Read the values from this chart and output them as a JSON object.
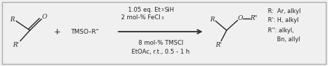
{
  "background_color": "#f0f0f0",
  "fig_width": 4.74,
  "fig_height": 0.96,
  "dpi": 100,
  "text_color": "#222222",
  "arrow_color": "#333333",
  "above_arrow_1": "1.05 eq. Et",
  "above_arrow_1b": "3",
  "above_arrow_1c": "SiH",
  "above_arrow_2": "2 mol-% FeCl",
  "above_arrow_2b": "3",
  "below_arrow_1": "8 mol-% TMSCl",
  "below_arrow_2": "EtOAc, r.t., 0.5 - 1 h",
  "reagent_text": "TMSO–R\"",
  "product_labels_line1": "R:  Ar, alkyl",
  "product_labels_line2": "R': H, alkyl",
  "product_labels_line3": "R'': alkyl,",
  "product_labels_line4": "     Bn, allyl",
  "border_color": "#aaaaaa"
}
